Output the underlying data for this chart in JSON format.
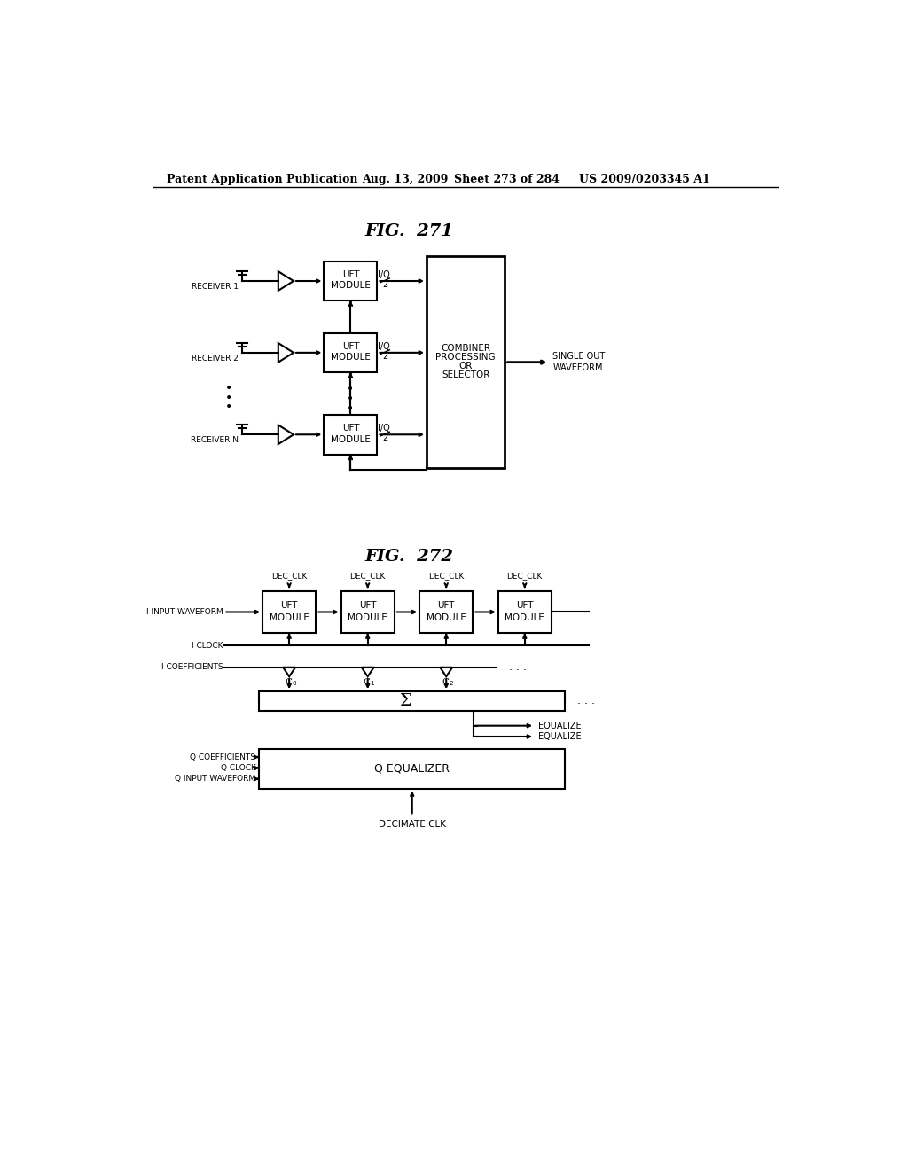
{
  "bg_color": "#ffffff",
  "header_text": "Patent Application Publication",
  "header_date": "Aug. 13, 2009",
  "header_sheet": "Sheet 273 of 284",
  "header_patent": "US 2009/0203345 A1",
  "fig271_title": "FIG.  271",
  "fig272_title": "FIG.  272"
}
